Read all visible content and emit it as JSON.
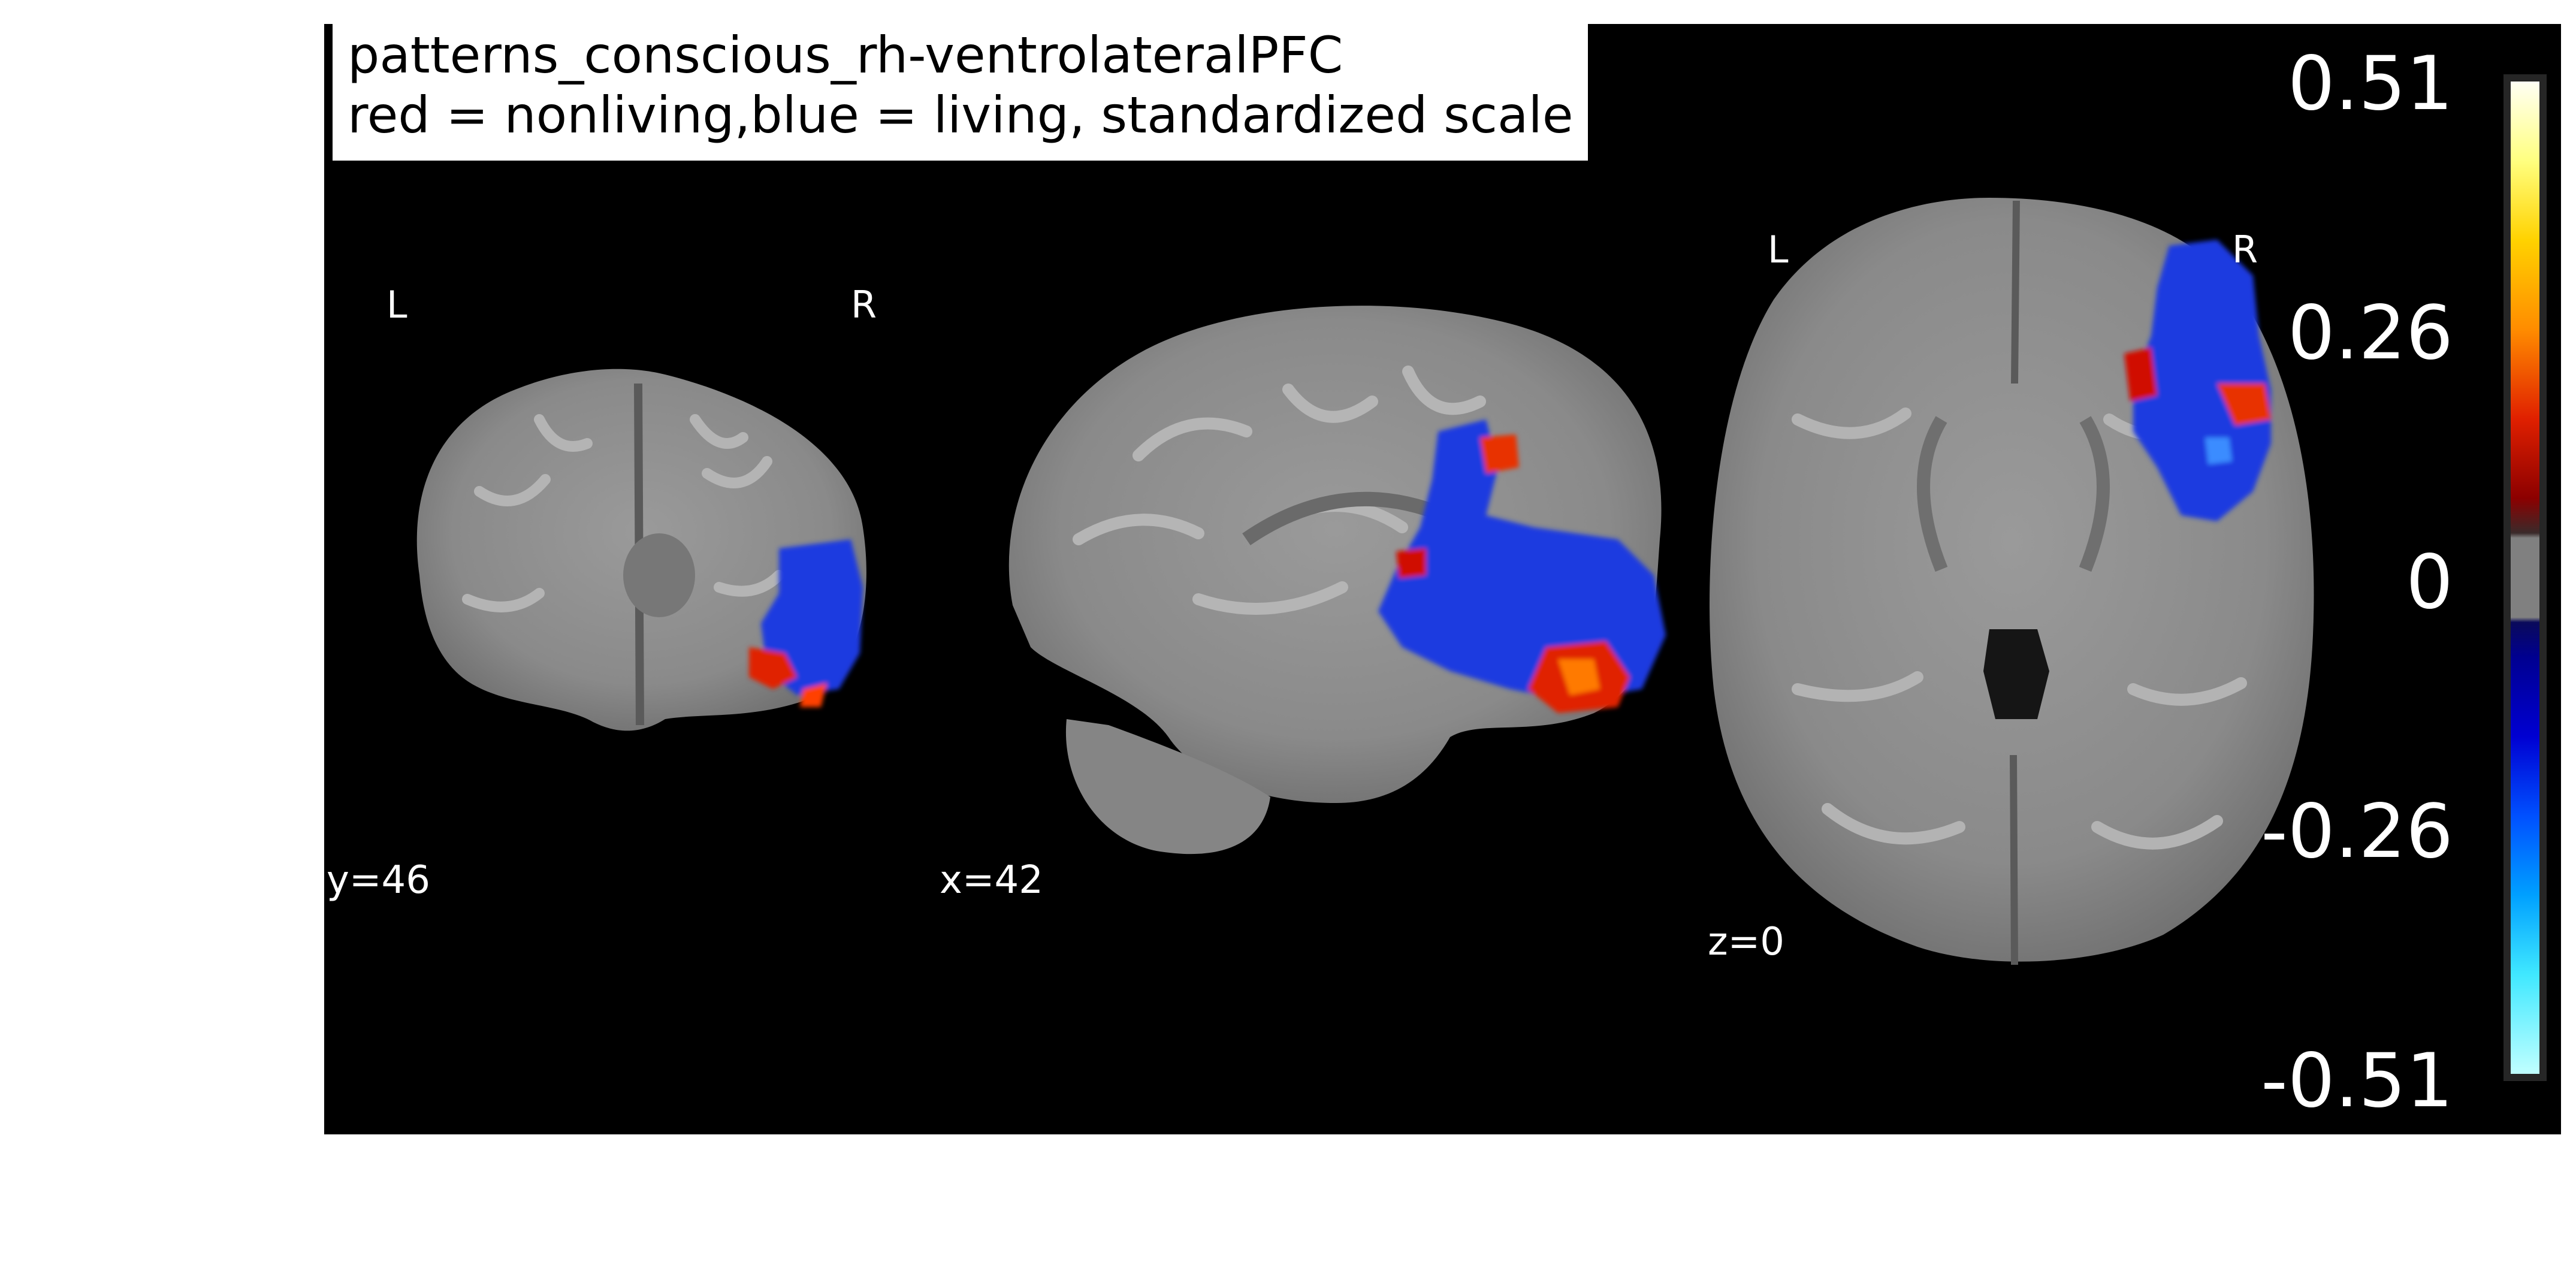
{
  "title": {
    "line1": "patterns_conscious_rh-ventrolateralPFC",
    "line2": "red = nonliving,blue = living, standardized scale"
  },
  "views": [
    {
      "name": "coronal",
      "coord_label": "y=46",
      "left_label": "L",
      "right_label": "R"
    },
    {
      "name": "sagittal",
      "coord_label": "x=42"
    },
    {
      "name": "axial",
      "coord_label": "z=0",
      "left_label": "L",
      "right_label": "R"
    }
  ],
  "colorbar": {
    "ticks": [
      "0.51",
      "0.26",
      "0",
      "-0.26",
      "-0.51"
    ],
    "vmin": -0.51,
    "vmax": 0.51,
    "colormap": "cold_hot"
  },
  "colors": {
    "background": "#000000",
    "brain": "#8f8f8f",
    "positive": "#e02000",
    "negative": "#1030e0"
  }
}
